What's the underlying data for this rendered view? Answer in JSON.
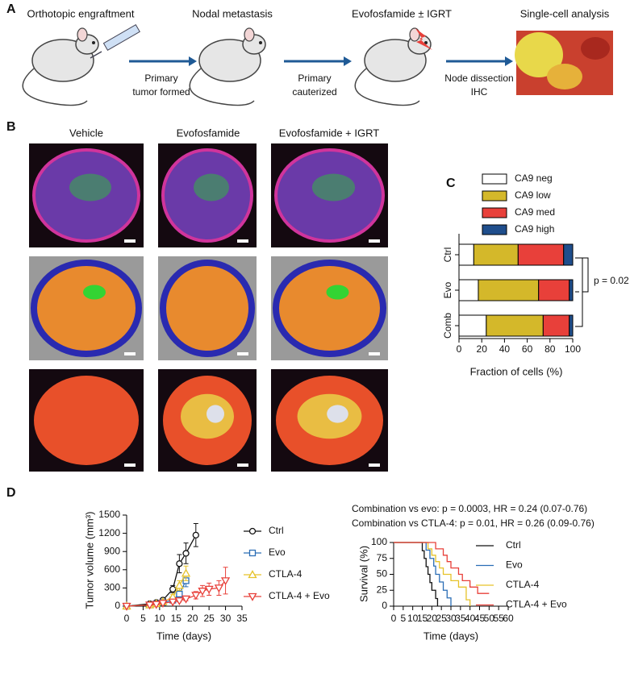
{
  "panel_labels": [
    "A",
    "B",
    "C",
    "D"
  ],
  "schematic": {
    "steps": [
      "Orthotopic engraftment",
      "Nodal metastasis",
      "Evofosfamide ± IGRT",
      "Single-cell analysis"
    ],
    "arrows": [
      [
        "Primary",
        "tumor formed"
      ],
      [
        "Primary",
        "cauterized"
      ],
      [
        "Node dissection",
        "IHC"
      ]
    ]
  },
  "panel_b": {
    "columns": [
      "Vehicle",
      "Evofosfamide",
      "Evofosfamide + IGRT"
    ]
  },
  "chart_data": [
    {
      "type": "bar",
      "orientation": "horizontal",
      "stacked": true,
      "categories": [
        "Ctrl",
        "Evo",
        "Comb"
      ],
      "series": [
        {
          "name": "CA9 neg",
          "color": "#ffffff",
          "values": [
            13,
            17,
            24
          ]
        },
        {
          "name": "CA9 low",
          "color": "#d4b82a",
          "values": [
            39,
            53,
            50
          ]
        },
        {
          "name": "CA9 med",
          "color": "#e8403a",
          "values": [
            40,
            27,
            23
          ]
        },
        {
          "name": "CA9 high",
          "color": "#1f4e8c",
          "values": [
            8,
            3,
            3
          ]
        }
      ],
      "xlim": [
        0,
        100
      ],
      "xticks": [
        0,
        20,
        40,
        60,
        80,
        100
      ],
      "xlabel": "Fraction of cells (%)",
      "annotation": "p = 0.02"
    },
    {
      "type": "line",
      "series": [
        {
          "name": "Ctrl",
          "color": "#111111",
          "marker": "circle",
          "x": [
            0,
            7,
            9,
            11,
            14,
            16,
            18,
            21
          ],
          "values": [
            0,
            40,
            60,
            100,
            280,
            700,
            870,
            1170
          ],
          "errors": [
            0,
            10,
            20,
            30,
            60,
            150,
            170,
            190
          ]
        },
        {
          "name": "Evo",
          "color": "#2a6db5",
          "marker": "square",
          "x": [
            0,
            7,
            9,
            11,
            14,
            16,
            18
          ],
          "values": [
            0,
            20,
            40,
            60,
            100,
            200,
            420
          ],
          "errors": [
            0,
            5,
            10,
            15,
            30,
            50,
            100
          ]
        },
        {
          "name": "CTLA-4",
          "color": "#e6c229",
          "marker": "triangle-up",
          "x": [
            0,
            7,
            9,
            11,
            14,
            16,
            18
          ],
          "values": [
            0,
            20,
            40,
            70,
            150,
            340,
            540
          ],
          "errors": [
            0,
            5,
            10,
            20,
            40,
            80,
            120
          ]
        },
        {
          "name": "CTLA-4 + Evo",
          "color": "#e8403a",
          "marker": "triangle-down",
          "x": [
            0,
            7,
            9,
            11,
            14,
            16,
            18,
            21,
            23,
            25,
            28,
            30
          ],
          "values": [
            0,
            20,
            30,
            50,
            70,
            90,
            120,
            180,
            250,
            280,
            300,
            420
          ],
          "errors": [
            0,
            5,
            10,
            10,
            20,
            20,
            30,
            60,
            90,
            100,
            120,
            220
          ]
        }
      ],
      "xlim": [
        0,
        35
      ],
      "xticks": [
        0,
        5,
        10,
        15,
        20,
        25,
        30,
        35
      ],
      "ylim": [
        0,
        1500
      ],
      "yticks": [
        0,
        300,
        600,
        900,
        1200,
        1500
      ],
      "xlabel": "Time (days)",
      "ylabel": "Tumor volume (mm³)"
    },
    {
      "type": "step",
      "annotations": [
        "Combination vs evo: p = 0.0003, HR = 0.24 (0.07-0.76)",
        "Combination vs CTLA-4: p = 0.01, HR = 0.26 (0.09-0.76)"
      ],
      "series": [
        {
          "name": "Ctrl",
          "color": "#111111",
          "x": [
            0,
            15,
            16,
            17,
            18,
            19,
            20,
            22,
            23
          ],
          "values": [
            100,
            87,
            75,
            62,
            50,
            37,
            25,
            12,
            0
          ]
        },
        {
          "name": "Evo",
          "color": "#2a6db5",
          "x": [
            0,
            17,
            19,
            21,
            22,
            24,
            26,
            28,
            30
          ],
          "values": [
            100,
            88,
            75,
            63,
            50,
            38,
            25,
            13,
            0
          ]
        },
        {
          "name": "CTLA-4",
          "color": "#e6c229",
          "x": [
            0,
            18,
            20,
            22,
            24,
            26,
            30,
            34,
            38,
            40
          ],
          "values": [
            100,
            90,
            80,
            70,
            60,
            50,
            40,
            30,
            10,
            0
          ]
        },
        {
          "name": "CTLA-4 + Evo",
          "color": "#e8403a",
          "x": [
            0,
            22,
            26,
            28,
            30,
            34,
            36,
            40,
            44,
            50
          ],
          "values": [
            100,
            90,
            80,
            70,
            60,
            50,
            40,
            30,
            20,
            20
          ]
        }
      ],
      "xlim": [
        0,
        60
      ],
      "xticks": [
        0,
        5,
        10,
        15,
        20,
        25,
        30,
        35,
        40,
        45,
        50,
        55,
        60
      ],
      "ylim": [
        0,
        100
      ],
      "yticks": [
        0,
        25,
        50,
        75,
        100
      ],
      "xlabel": "Time (days)",
      "ylabel": "Survival (%)"
    }
  ]
}
